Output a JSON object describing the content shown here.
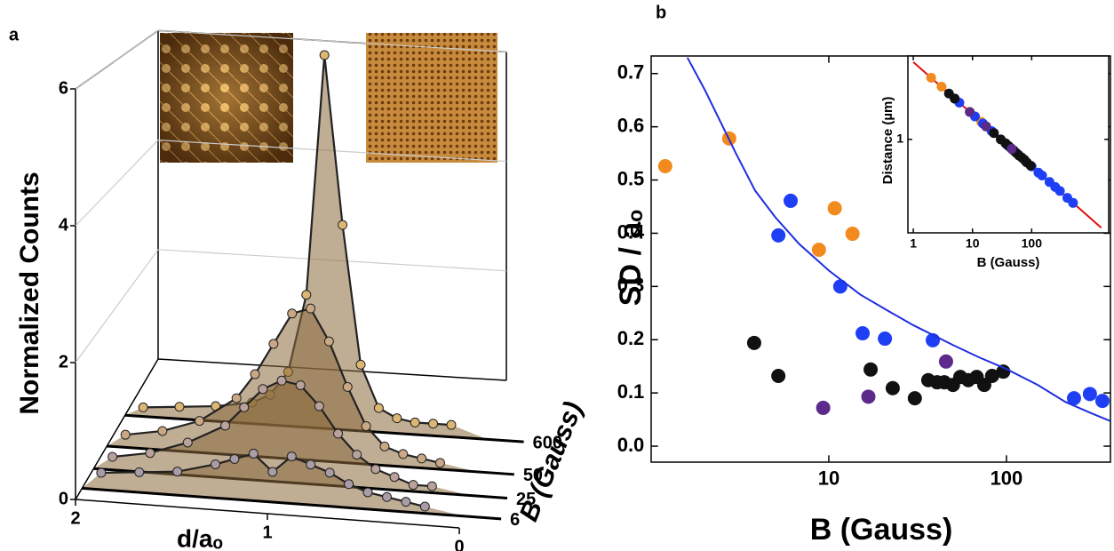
{
  "chart_data": [
    {
      "type": "waterfall3d",
      "panel": "a",
      "xlabel": "d/aₒ",
      "ylabel": "Normalized Counts",
      "zlabel": "B (Gauss)",
      "xlim": [
        2,
        0
      ],
      "xticks": [
        2,
        1,
        0
      ],
      "ylim": [
        0,
        6
      ],
      "yticks": [
        0,
        2,
        4,
        6
      ],
      "grid": true,
      "x": [
        1.9,
        1.7,
        1.5,
        1.3,
        1.2,
        1.1,
        1.0,
        0.9,
        0.8,
        0.7,
        0.6,
        0.5,
        0.4,
        0.3,
        0.2
      ],
      "series": [
        {
          "name": "6",
          "color": "#a89ca6",
          "values": [
            0.25,
            0.3,
            0.35,
            0.5,
            0.6,
            0.7,
            0.45,
            0.7,
            0.6,
            0.5,
            0.35,
            0.25,
            0.2,
            0.15,
            0.1
          ]
        },
        {
          "name": "25",
          "color": "#b9a29c",
          "values": [
            0.2,
            0.3,
            0.5,
            0.8,
            1.1,
            1.4,
            1.55,
            1.5,
            1.2,
            0.8,
            0.5,
            0.3,
            0.2,
            0.1,
            0.1
          ]
        },
        {
          "name": "50",
          "color": "#caa886",
          "values": [
            0.2,
            0.3,
            0.5,
            0.9,
            1.3,
            1.8,
            2.3,
            2.4,
            1.9,
            1.2,
            0.6,
            0.3,
            0.2,
            0.15,
            0.1
          ]
        },
        {
          "name": "600",
          "color": "#deb674",
          "values": [
            0.15,
            0.2,
            0.25,
            0.35,
            0.5,
            0.9,
            2.2,
            6.2,
            3.4,
            1.1,
            0.4,
            0.25,
            0.2,
            0.2,
            0.2
          ]
        }
      ]
    },
    {
      "type": "scatter",
      "panel": "b",
      "xlabel": "B (Gauss)",
      "ylabel": "SD / aₒ",
      "xlog": true,
      "xlim": [
        1,
        385
      ],
      "xticks": [
        10,
        100
      ],
      "ylim": [
        -0.03,
        0.733
      ],
      "yticks": [
        {
          "value": 0,
          "label": "0.0"
        },
        0.1,
        0.2,
        0.3,
        0.4,
        0.5,
        0.6,
        0.7
      ],
      "series": [
        {
          "kind": "points",
          "color": "#f28a1e",
          "x": [
            1.2,
            2.75,
            8.8,
            10.8,
            13.6
          ],
          "values": [
            0.526,
            0.578,
            0.369,
            0.447,
            0.399
          ]
        },
        {
          "kind": "points",
          "color": "#1f3ff5",
          "x": [
            5.2,
            6.1,
            11.6,
            15.5,
            20.7,
            38.5,
            240,
            295,
            347
          ],
          "values": [
            0.396,
            0.461,
            0.3,
            0.212,
            0.202,
            0.199,
            0.09,
            0.098,
            0.085
          ]
        },
        {
          "kind": "points",
          "color": "#111111",
          "x": [
            3.8,
            5.2,
            17.2,
            22.9,
            30.5,
            36.3,
            40.7,
            44.7,
            50,
            55,
            61,
            68,
            75,
            83,
            96
          ],
          "values": [
            0.194,
            0.132,
            0.144,
            0.109,
            0.09,
            0.124,
            0.12,
            0.12,
            0.115,
            0.13,
            0.124,
            0.13,
            0.115,
            0.132,
            0.14
          ]
        },
        {
          "kind": "points",
          "color": "#5b2a8a",
          "x": [
            9.3,
            16.7,
            45.7
          ],
          "values": [
            0.072,
            0.093,
            0.159
          ]
        },
        {
          "kind": "line",
          "color": "#1f2fe0",
          "x": [
            1.6,
            2,
            3,
            3.85,
            5,
            6.8,
            10,
            15,
            21.6,
            30,
            50,
            70,
            100,
            150,
            215,
            300,
            385
          ],
          "values": [
            0.73,
            0.67,
            0.55,
            0.48,
            0.43,
            0.38,
            0.33,
            0.285,
            0.254,
            0.227,
            0.19,
            0.167,
            0.145,
            0.115,
            0.083,
            0.062,
            0.047
          ]
        }
      ],
      "inset": {
        "xlabel": "B (Gauss)",
        "ylabel": "Distance (µm)",
        "xlog": true,
        "ylog": true,
        "xlim": [
          0.81,
          2000
        ],
        "xticks": [
          1,
          10,
          100
        ],
        "ylim": [
          0.127,
          6.3
        ],
        "yticks": [
          1
        ],
        "series": [
          {
            "kind": "line",
            "color": "#e01010",
            "x": [
              1,
              1500
            ],
            "values": [
              5.5,
              0.142
            ]
          },
          {
            "kind": "points",
            "color": "#f28a1e",
            "x": [
              2,
              3,
              9,
              11,
              14
            ],
            "values": [
              3.9,
              3.2,
              1.83,
              1.66,
              1.47
            ]
          },
          {
            "kind": "points",
            "color": "#1f3ff5",
            "x": [
              5,
              6,
              11,
              15,
              21,
              38,
              50,
              60,
              80,
              100,
              130,
              150,
              200,
              250,
              300,
              400,
              500
            ],
            "values": [
              2.46,
              2.25,
              1.66,
              1.42,
              1.2,
              0.89,
              0.78,
              0.71,
              0.61,
              0.55,
              0.48,
              0.45,
              0.39,
              0.35,
              0.32,
              0.275,
              0.246
            ]
          },
          {
            "kind": "points",
            "color": "#111111",
            "x": [
              4,
              5,
              17,
              23,
              30,
              36,
              41,
              45,
              50,
              55,
              61,
              68,
              75,
              83,
              96
            ],
            "values": [
              2.75,
              2.46,
              1.33,
              1.15,
              1.0,
              0.92,
              0.86,
              0.82,
              0.78,
              0.74,
              0.7,
              0.67,
              0.64,
              0.6,
              0.56
            ]
          },
          {
            "kind": "points",
            "color": "#5b2a8a",
            "x": [
              9,
              17,
              46
            ],
            "values": [
              1.83,
              1.33,
              0.81
            ]
          }
        ]
      }
    }
  ]
}
